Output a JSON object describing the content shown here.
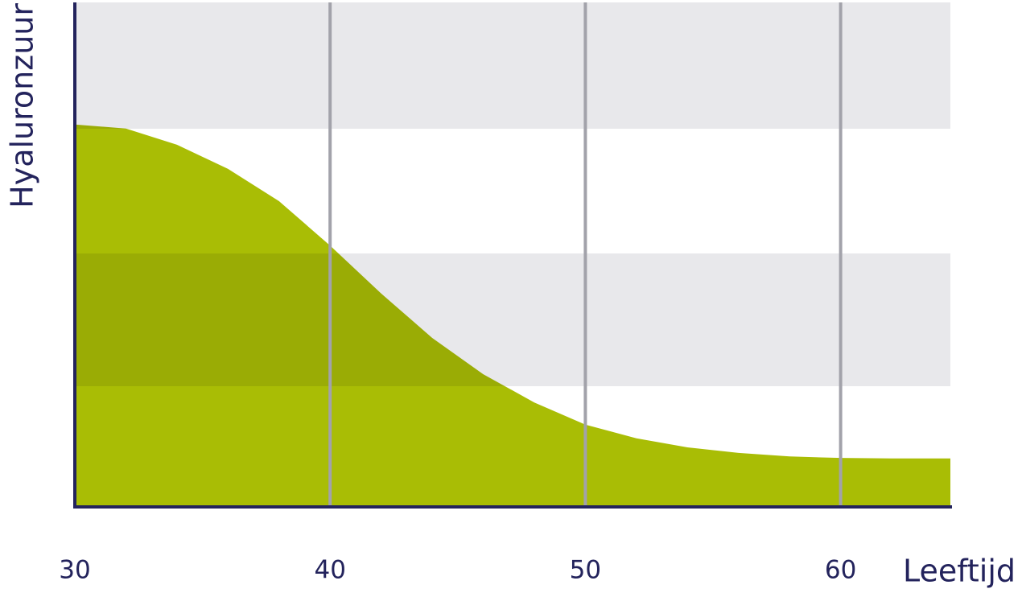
{
  "chart_data": {
    "type": "area",
    "x_label": "Leeftijd",
    "y_label": "Hyaluronzuur",
    "x": [
      30,
      32,
      34,
      36,
      38,
      40,
      42,
      44,
      46,
      48,
      50,
      52,
      54,
      56,
      58,
      60,
      62,
      64.3
    ],
    "values": [
      75.8,
      75,
      71.8,
      67,
      60.6,
      51.8,
      42.3,
      33.5,
      26.3,
      20.7,
      16.3,
      13.6,
      11.8,
      10.7,
      10.0,
      9.7,
      9.6,
      9.6
    ],
    "color": "#a9bd05",
    "xlim": [
      30,
      64.3
    ],
    "xticks": [
      30,
      40,
      50,
      60
    ],
    "ylim": [
      0,
      100
    ],
    "grid": true
  }
}
